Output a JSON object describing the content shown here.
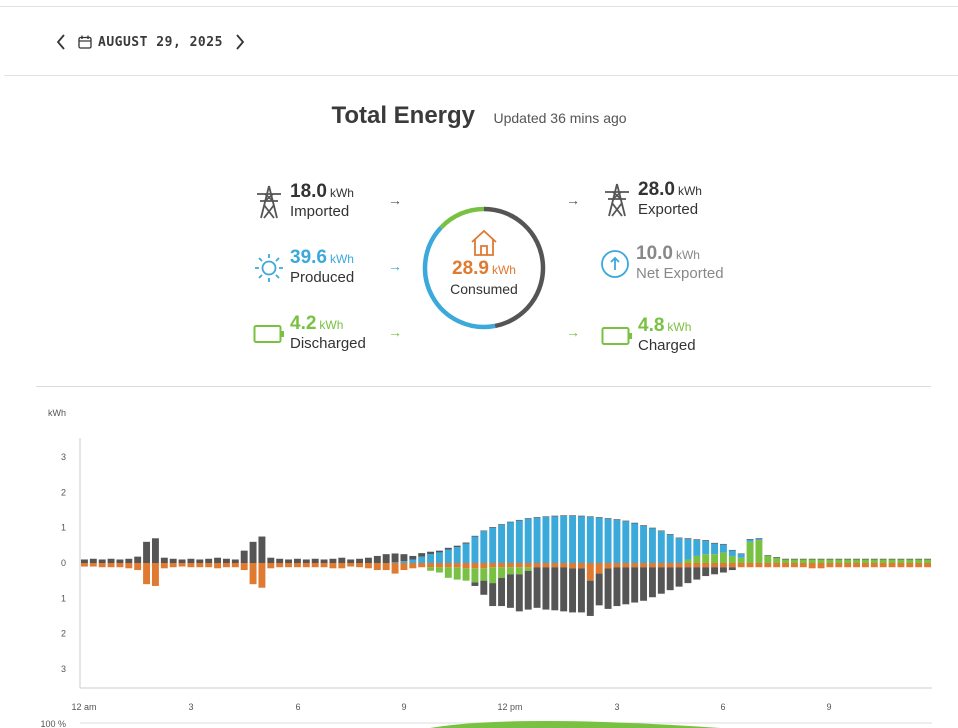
{
  "date_nav": {
    "date": "AUGUST 29, 2025"
  },
  "header": {
    "title": "Total Energy",
    "updated": "Updated 36 mins ago"
  },
  "colors": {
    "grid": "#555555",
    "solar": "#3ba9d9",
    "battery": "#79c142",
    "home": "#e07a30",
    "gray": "#888888"
  },
  "flow": {
    "imported": {
      "value": "18.0",
      "unit": "kWh",
      "label": "Imported"
    },
    "produced": {
      "value": "39.6",
      "unit": "kWh",
      "label": "Produced"
    },
    "discharged": {
      "value": "4.2",
      "unit": "kWh",
      "label": "Discharged"
    },
    "consumed": {
      "value": "28.9",
      "unit": "kWh",
      "label": "Consumed"
    },
    "exported": {
      "value": "28.0",
      "unit": "kWh",
      "label": "Exported"
    },
    "net_exported": {
      "value": "10.0",
      "unit": "kWh",
      "label": "Net Exported"
    },
    "charged": {
      "value": "4.8",
      "unit": "kWh",
      "label": "Charged"
    }
  },
  "consumed_sources": {
    "solar_pct": 0.4,
    "battery_pct": 0.13,
    "grid_pct": 0.47
  },
  "chart_data": {
    "type": "bar",
    "ylabel": "kWh",
    "yticks": [
      "3",
      "2",
      "1",
      "0",
      "1",
      "2",
      "3"
    ],
    "ylim": [
      -3,
      3
    ],
    "xticks": [
      "12 am",
      "3",
      "6",
      "9",
      "12 pm",
      "3",
      "6",
      "9"
    ],
    "intervals": 96,
    "series": [
      {
        "key": "grid_import",
        "values": [
          0.1,
          0.12,
          0.1,
          0.12,
          0.1,
          0.12,
          0.18,
          0.6,
          0.7,
          0.15,
          0.12,
          0.1,
          0.12,
          0.1,
          0.12,
          0.15,
          0.12,
          0.1,
          0.35,
          0.6,
          0.75,
          0.15,
          0.12,
          0.1,
          0.12,
          0.1,
          0.12,
          0.1,
          0.12,
          0.15,
          0.1,
          0.12,
          0.15,
          0.2,
          0.25,
          0.25,
          0.2,
          0.1,
          0.1,
          0.07,
          0.05,
          0.05,
          0.04,
          0.03,
          0.02,
          0.02,
          0.02,
          0.02,
          0.02,
          0.02,
          0.02,
          0.02,
          0.02,
          0.02,
          0.02,
          0.02,
          0.02,
          0.02,
          0.02,
          0.02,
          0.02,
          0.02,
          0.02,
          0.02,
          0.02,
          0.02,
          0.02,
          0.02,
          0.02,
          0.02,
          0.02,
          0.02,
          0.02,
          0.02,
          0.02,
          0.02,
          0.02,
          0.02,
          0.02,
          0.02,
          0.02,
          0.02,
          0.02,
          0.02,
          0.02,
          0.02,
          0.02,
          0.02,
          0.02,
          0.02,
          0.02,
          0.02,
          0.02,
          0.02,
          0.02,
          0.02
        ]
      },
      {
        "key": "solar",
        "values": [
          0,
          0,
          0,
          0,
          0,
          0,
          0,
          0,
          0,
          0,
          0,
          0,
          0,
          0,
          0,
          0,
          0,
          0,
          0,
          0,
          0,
          0,
          0,
          0,
          0,
          0,
          0,
          0,
          0,
          0,
          0,
          0,
          0,
          0,
          0,
          0.02,
          0.05,
          0.1,
          0.18,
          0.25,
          0.3,
          0.38,
          0.45,
          0.55,
          0.75,
          0.9,
          1.0,
          1.08,
          1.15,
          1.2,
          1.25,
          1.28,
          1.3,
          1.32,
          1.33,
          1.33,
          1.32,
          1.3,
          1.28,
          1.25,
          1.22,
          1.18,
          1.12,
          1.05,
          0.98,
          0.9,
          0.8,
          0.7,
          0.58,
          0.45,
          0.38,
          0.3,
          0.22,
          0.15,
          0.1,
          0.06,
          0.03,
          0,
          0,
          0,
          0,
          0,
          0,
          0,
          0,
          0,
          0,
          0,
          0,
          0,
          0,
          0,
          0,
          0,
          0,
          0
        ]
      },
      {
        "key": "battery_discharge",
        "values": [
          0,
          0,
          0,
          0,
          0,
          0,
          0,
          0,
          0,
          0,
          0,
          0,
          0,
          0,
          0,
          0,
          0,
          0,
          0,
          0,
          0,
          0,
          0,
          0,
          0,
          0,
          0,
          0,
          0,
          0,
          0,
          0,
          0,
          0,
          0,
          0,
          0,
          0,
          0,
          0,
          0,
          0,
          0,
          0,
          0,
          0,
          0,
          0,
          0,
          0,
          0,
          0,
          0,
          0,
          0,
          0,
          0,
          0,
          0,
          0,
          0,
          0,
          0,
          0,
          0,
          0,
          0,
          0,
          0.1,
          0.2,
          0.25,
          0.25,
          0.3,
          0.2,
          0.15,
          0.6,
          0.65,
          0.2,
          0.15,
          0.1,
          0.1,
          0.1,
          0.1,
          0.1,
          0.1,
          0.1,
          0.1,
          0.1,
          0.1,
          0.1,
          0.1,
          0.1,
          0.1,
          0.1,
          0.1,
          0.1
        ]
      },
      {
        "key": "home_negative",
        "values": [
          -0.1,
          -0.1,
          -0.12,
          -0.12,
          -0.12,
          -0.15,
          -0.2,
          -0.6,
          -0.65,
          -0.15,
          -0.12,
          -0.1,
          -0.12,
          -0.12,
          -0.12,
          -0.15,
          -0.12,
          -0.12,
          -0.2,
          -0.6,
          -0.7,
          -0.15,
          -0.12,
          -0.12,
          -0.12,
          -0.12,
          -0.12,
          -0.12,
          -0.15,
          -0.15,
          -0.1,
          -0.12,
          -0.15,
          -0.2,
          -0.2,
          -0.3,
          -0.2,
          -0.15,
          -0.12,
          -0.12,
          -0.12,
          -0.12,
          -0.12,
          -0.15,
          -0.15,
          -0.15,
          -0.12,
          -0.12,
          -0.12,
          -0.12,
          -0.12,
          -0.12,
          -0.12,
          -0.12,
          -0.12,
          -0.15,
          -0.15,
          -0.5,
          -0.3,
          -0.15,
          -0.12,
          -0.12,
          -0.12,
          -0.12,
          -0.12,
          -0.12,
          -0.12,
          -0.12,
          -0.12,
          -0.12,
          -0.12,
          -0.12,
          -0.12,
          -0.12,
          -0.12,
          -0.12,
          -0.12,
          -0.12,
          -0.12,
          -0.12,
          -0.12,
          -0.12,
          -0.15,
          -0.15,
          -0.12,
          -0.12,
          -0.12,
          -0.12,
          -0.12,
          -0.12,
          -0.12,
          -0.12,
          -0.12,
          -0.12,
          -0.12,
          -0.12
        ]
      },
      {
        "key": "grid_export",
        "values": [
          0,
          0,
          0,
          0,
          0,
          0,
          0,
          0,
          0,
          0,
          0,
          0,
          0,
          0,
          0,
          0,
          0,
          0,
          0,
          0,
          0,
          0,
          0,
          0,
          0,
          0,
          0,
          0,
          0,
          0,
          0,
          0,
          0,
          0,
          0,
          0,
          0,
          0,
          0,
          0,
          0,
          0,
          0,
          0,
          -0.1,
          -0.4,
          -0.65,
          -0.8,
          -0.95,
          -1.05,
          -1.1,
          -1.15,
          -1.2,
          -1.22,
          -1.25,
          -1.25,
          -1.25,
          -1.0,
          -0.9,
          -1.15,
          -1.1,
          -1.05,
          -1.0,
          -0.95,
          -0.85,
          -0.75,
          -0.65,
          -0.55,
          -0.45,
          -0.35,
          -0.25,
          -0.2,
          -0.15,
          -0.08,
          0,
          0,
          0,
          0,
          0,
          0,
          0,
          0,
          0,
          0,
          0,
          0,
          0,
          0,
          0,
          0,
          0,
          0,
          0,
          0,
          0,
          0
        ]
      },
      {
        "key": "battery_charge",
        "values": [
          0,
          0,
          0,
          0,
          0,
          0,
          0,
          0,
          0,
          0,
          0,
          0,
          0,
          0,
          0,
          0,
          0,
          0,
          0,
          0,
          0,
          0,
          0,
          0,
          0,
          0,
          0,
          0,
          0,
          0,
          0,
          0,
          0,
          0,
          0,
          0,
          0,
          0,
          0,
          -0.1,
          -0.15,
          -0.3,
          -0.35,
          -0.35,
          -0.4,
          -0.35,
          -0.45,
          -0.3,
          -0.2,
          -0.2,
          -0.1,
          0,
          0,
          0,
          0,
          0,
          0,
          0,
          0,
          0,
          0,
          0,
          0,
          0,
          0,
          0,
          0,
          0,
          0,
          0,
          0,
          0,
          0,
          0,
          0,
          0,
          0,
          0,
          0,
          0,
          0,
          0,
          0,
          0,
          0,
          0,
          0,
          0,
          0,
          0,
          0,
          0,
          0,
          0,
          0,
          0
        ]
      }
    ]
  },
  "bottom_axis": {
    "label": "100 %"
  }
}
